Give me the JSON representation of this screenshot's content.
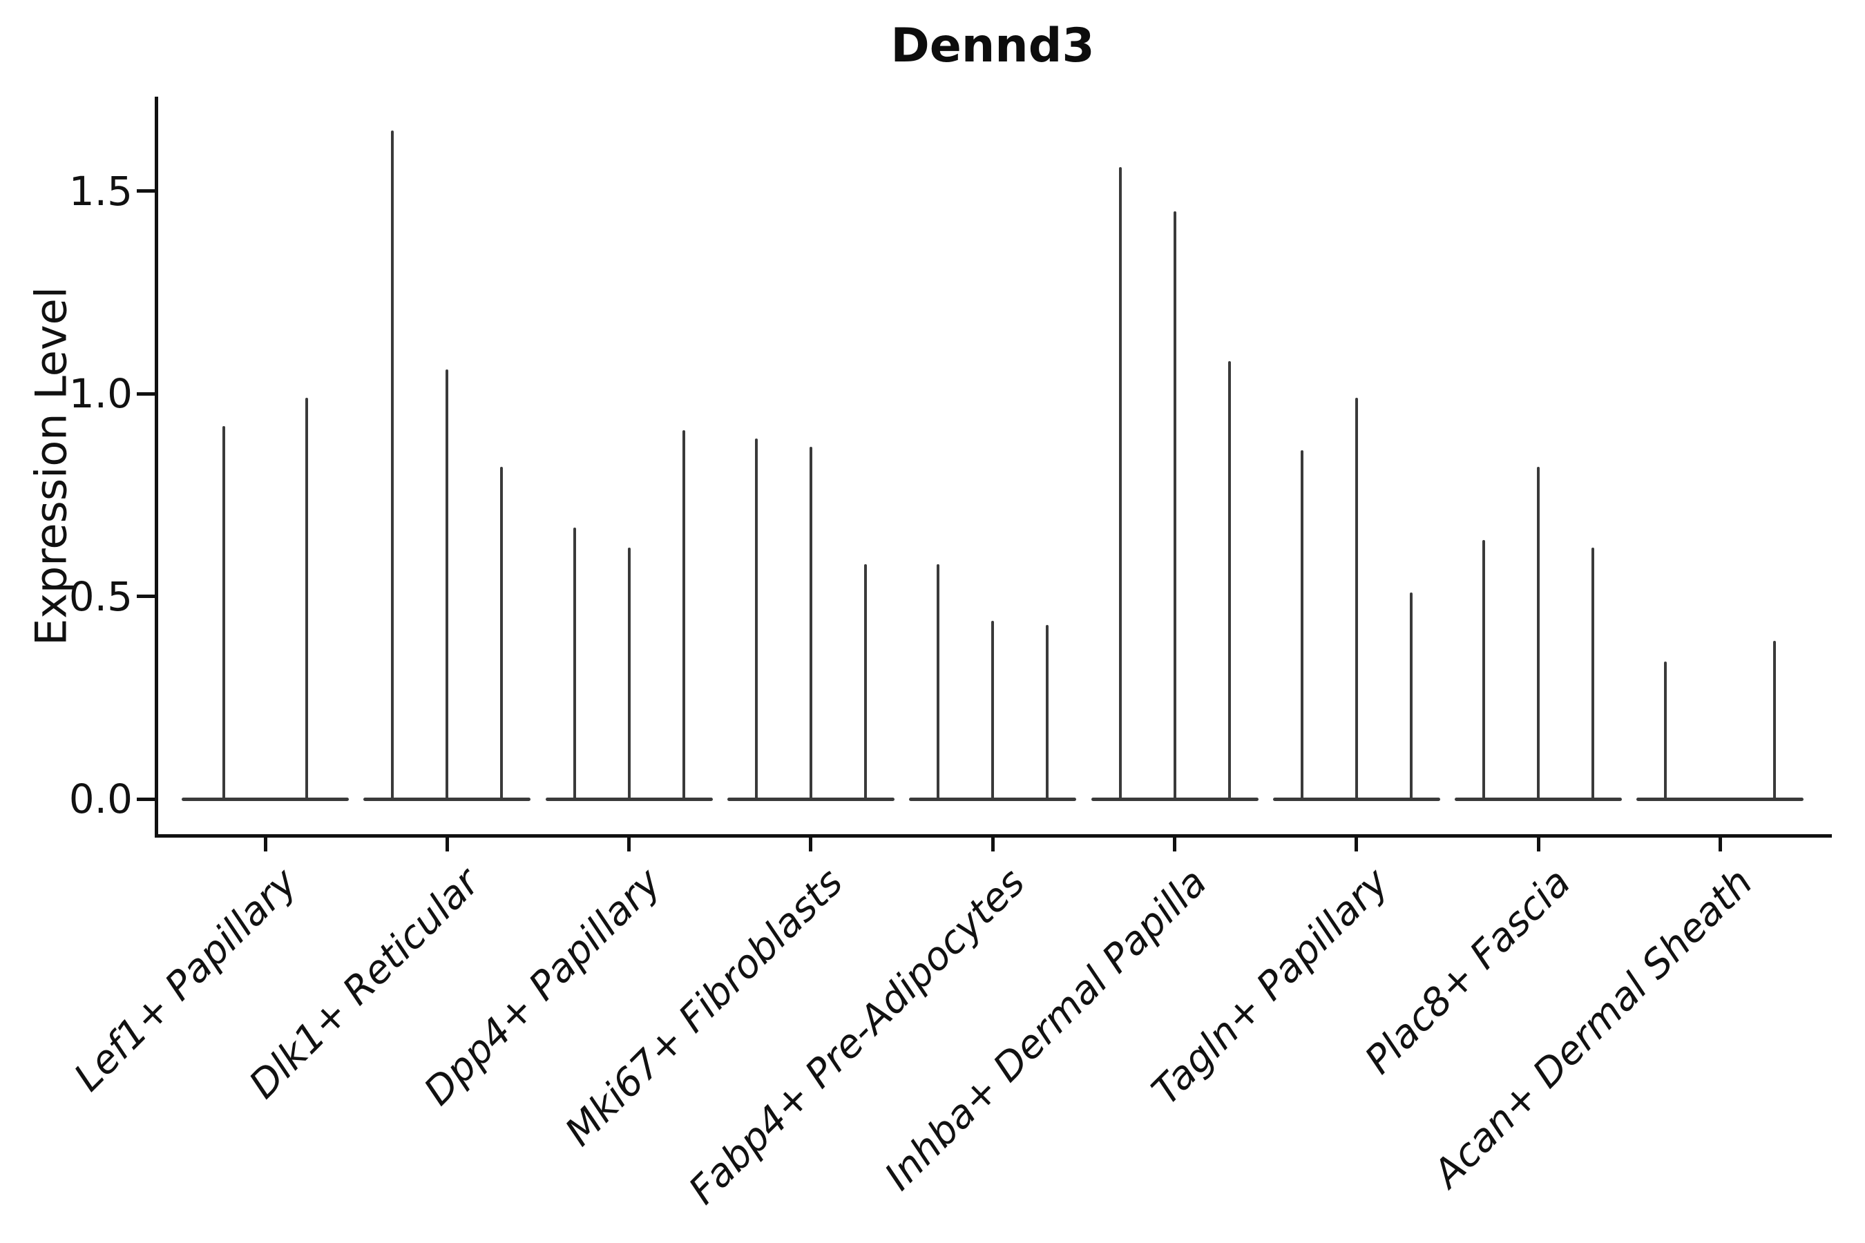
{
  "chart_data": {
    "type": "violin",
    "title": "Dennd3",
    "xlabel": "",
    "ylabel": "Expression Level",
    "ytick_labels": [
      "0.0",
      "0.5",
      "1.0",
      "1.5"
    ],
    "ytick_values": [
      0.0,
      0.5,
      1.0,
      1.5
    ],
    "ylim": [
      -0.09,
      1.73
    ],
    "grid": false,
    "legend": "none",
    "stroke_color": "#3a3a3a",
    "axis_color": "#111111",
    "groups": [
      {
        "category": "Lef1+ Papillary",
        "violins": [
          {
            "offset": -60,
            "max": 0.92
          },
          {
            "offset": 60,
            "max": 0.99
          }
        ]
      },
      {
        "category": "Dlk1+ Reticular",
        "violins": [
          {
            "offset": -79,
            "max": 1.65
          },
          {
            "offset": 0,
            "max": 1.06
          },
          {
            "offset": 79,
            "max": 0.82
          }
        ]
      },
      {
        "category": "Dpp4+ Papillary",
        "violins": [
          {
            "offset": -79,
            "max": 0.67
          },
          {
            "offset": 0,
            "max": 0.62
          },
          {
            "offset": 79,
            "max": 0.91
          }
        ]
      },
      {
        "category": "Mki67+ Fibroblasts",
        "violins": [
          {
            "offset": -79,
            "max": 0.89
          },
          {
            "offset": 0,
            "max": 0.87
          },
          {
            "offset": 79,
            "max": 0.58
          }
        ]
      },
      {
        "category": "Fabp4+ Pre-Adipocytes",
        "violins": [
          {
            "offset": -79,
            "max": 0.58
          },
          {
            "offset": 0,
            "max": 0.44
          },
          {
            "offset": 79,
            "max": 0.43
          }
        ]
      },
      {
        "category": "Inhba+ Dermal Papilla",
        "violins": [
          {
            "offset": -79,
            "max": 1.56
          },
          {
            "offset": 0,
            "max": 1.45
          },
          {
            "offset": 79,
            "max": 1.08
          }
        ]
      },
      {
        "category": "Tagln+ Papillary",
        "violins": [
          {
            "offset": -79,
            "max": 0.86
          },
          {
            "offset": 0,
            "max": 0.99
          },
          {
            "offset": 79,
            "max": 0.51
          }
        ]
      },
      {
        "category": "Plac8+ Fascia",
        "violins": [
          {
            "offset": -79,
            "max": 0.64
          },
          {
            "offset": 0,
            "max": 0.82
          },
          {
            "offset": 79,
            "max": 0.62
          }
        ]
      },
      {
        "category": "Acan+ Dermal Sheath",
        "violins": [
          {
            "offset": -79,
            "max": 0.34
          },
          {
            "offset": 0,
            "max": 0.0
          },
          {
            "offset": 79,
            "max": 0.39
          }
        ]
      }
    ]
  }
}
